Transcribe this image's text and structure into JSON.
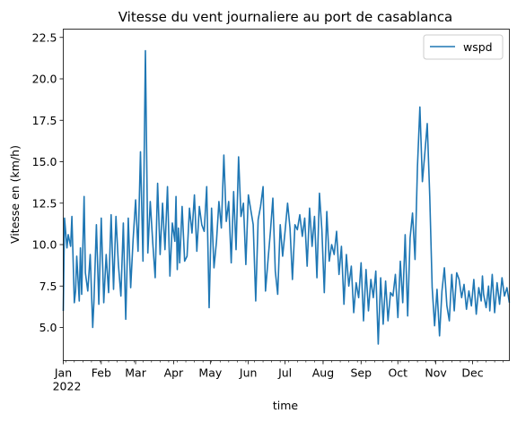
{
  "chart_data": {
    "type": "line",
    "title": "Vitesse du vent journaliere au port de casablanca",
    "xlabel": "time",
    "ylabel": "Vitesse en (km/h)",
    "ylim": [
      3.0,
      23.0
    ],
    "xlim": [
      "2022-01-01",
      "2022-12-31"
    ],
    "y_ticks": [
      5.0,
      7.5,
      10.0,
      12.5,
      15.0,
      17.5,
      20.0,
      22.5
    ],
    "y_tick_labels": [
      "5.0",
      "7.5",
      "10.0",
      "12.5",
      "15.0",
      "17.5",
      "20.0",
      "22.5"
    ],
    "x_ticks": [
      {
        "date": "2022-01-01",
        "label": "Jan",
        "sublabel": "2022"
      },
      {
        "date": "2022-02-01",
        "label": "Feb"
      },
      {
        "date": "2022-03-01",
        "label": "Mar"
      },
      {
        "date": "2022-04-01",
        "label": "Apr"
      },
      {
        "date": "2022-05-01",
        "label": "May"
      },
      {
        "date": "2022-06-01",
        "label": "Jun"
      },
      {
        "date": "2022-07-01",
        "label": "Jul"
      },
      {
        "date": "2022-08-01",
        "label": "Aug"
      },
      {
        "date": "2022-09-01",
        "label": "Sep"
      },
      {
        "date": "2022-10-01",
        "label": "Oct"
      },
      {
        "date": "2022-11-01",
        "label": "Nov"
      },
      {
        "date": "2022-12-01",
        "label": "Dec"
      }
    ],
    "legend": {
      "position": "top-right"
    },
    "grid": false,
    "series": [
      {
        "name": "wspd",
        "color": "#1f77b4",
        "x": [
          "2022-01-01",
          "2022-01-02",
          "2022-01-04",
          "2022-01-05",
          "2022-01-07",
          "2022-01-08",
          "2022-01-10",
          "2022-01-11",
          "2022-01-12",
          "2022-01-14",
          "2022-01-15",
          "2022-01-16",
          "2022-01-18",
          "2022-01-19",
          "2022-01-21",
          "2022-01-23",
          "2022-01-25",
          "2022-01-26",
          "2022-01-28",
          "2022-01-30",
          "2022-02-01",
          "2022-02-03",
          "2022-02-05",
          "2022-02-07",
          "2022-02-09",
          "2022-02-11",
          "2022-02-13",
          "2022-02-15",
          "2022-02-17",
          "2022-02-19",
          "2022-02-21",
          "2022-02-23",
          "2022-02-25",
          "2022-02-27",
          "2022-03-01",
          "2022-03-03",
          "2022-03-05",
          "2022-03-07",
          "2022-03-09",
          "2022-03-11",
          "2022-03-13",
          "2022-03-15",
          "2022-03-17",
          "2022-03-19",
          "2022-03-21",
          "2022-03-23",
          "2022-03-25",
          "2022-03-27",
          "2022-03-29",
          "2022-03-31",
          "2022-04-02",
          "2022-04-03",
          "2022-04-04",
          "2022-04-05",
          "2022-04-06",
          "2022-04-08",
          "2022-04-10",
          "2022-04-12",
          "2022-04-14",
          "2022-04-16",
          "2022-04-18",
          "2022-04-20",
          "2022-04-22",
          "2022-04-24",
          "2022-04-26",
          "2022-04-28",
          "2022-04-30",
          "2022-05-02",
          "2022-05-04",
          "2022-05-06",
          "2022-05-08",
          "2022-05-10",
          "2022-05-12",
          "2022-05-14",
          "2022-05-16",
          "2022-05-18",
          "2022-05-20",
          "2022-05-22",
          "2022-05-24",
          "2022-05-26",
          "2022-05-28",
          "2022-05-30",
          "2022-06-01",
          "2022-06-03",
          "2022-06-05",
          "2022-06-07",
          "2022-06-09",
          "2022-06-11",
          "2022-06-13",
          "2022-06-15",
          "2022-06-17",
          "2022-06-19",
          "2022-06-21",
          "2022-06-23",
          "2022-06-25",
          "2022-06-27",
          "2022-06-29",
          "2022-07-01",
          "2022-07-03",
          "2022-07-05",
          "2022-07-07",
          "2022-07-09",
          "2022-07-11",
          "2022-07-13",
          "2022-07-15",
          "2022-07-17",
          "2022-07-19",
          "2022-07-21",
          "2022-07-23",
          "2022-07-25",
          "2022-07-27",
          "2022-07-29",
          "2022-07-31",
          "2022-08-02",
          "2022-08-04",
          "2022-08-06",
          "2022-08-08",
          "2022-08-10",
          "2022-08-12",
          "2022-08-14",
          "2022-08-16",
          "2022-08-18",
          "2022-08-20",
          "2022-08-22",
          "2022-08-24",
          "2022-08-26",
          "2022-08-28",
          "2022-08-30",
          "2022-09-01",
          "2022-09-03",
          "2022-09-05",
          "2022-09-07",
          "2022-09-09",
          "2022-09-11",
          "2022-09-13",
          "2022-09-15",
          "2022-09-17",
          "2022-09-19",
          "2022-09-21",
          "2022-09-23",
          "2022-09-25",
          "2022-09-27",
          "2022-09-29",
          "2022-10-01",
          "2022-10-03",
          "2022-10-05",
          "2022-10-07",
          "2022-10-09",
          "2022-10-11",
          "2022-10-13",
          "2022-10-15",
          "2022-10-17",
          "2022-10-19",
          "2022-10-21",
          "2022-10-23",
          "2022-10-25",
          "2022-10-27",
          "2022-10-29",
          "2022-10-31",
          "2022-11-02",
          "2022-11-04",
          "2022-11-06",
          "2022-11-08",
          "2022-11-10",
          "2022-11-12",
          "2022-11-14",
          "2022-11-16",
          "2022-11-18",
          "2022-11-20",
          "2022-11-22",
          "2022-11-24",
          "2022-11-26",
          "2022-11-28",
          "2022-11-30",
          "2022-12-02",
          "2022-12-04",
          "2022-12-06",
          "2022-12-08",
          "2022-12-09",
          "2022-12-10",
          "2022-12-12",
          "2022-12-14",
          "2022-12-15",
          "2022-12-17",
          "2022-12-19",
          "2022-12-21",
          "2022-12-23",
          "2022-12-25",
          "2022-12-27",
          "2022-12-29",
          "2022-12-31"
        ],
        "values": [
          6.0,
          11.6,
          9.8,
          10.6,
          9.9,
          11.7,
          6.5,
          7.2,
          9.3,
          6.6,
          9.8,
          7.0,
          12.9,
          8.3,
          7.2,
          9.4,
          5.0,
          6.5,
          11.2,
          6.4,
          11.6,
          6.5,
          9.4,
          7.1,
          11.8,
          7.3,
          11.7,
          8.8,
          6.9,
          11.3,
          5.5,
          11.6,
          7.4,
          10.3,
          12.7,
          9.6,
          15.6,
          9.0,
          21.7,
          9.5,
          12.6,
          10.1,
          8.0,
          13.7,
          9.4,
          12.5,
          9.7,
          13.5,
          8.1,
          11.3,
          10.2,
          12.9,
          8.5,
          11.0,
          8.9,
          12.3,
          9.0,
          9.3,
          12.2,
          10.7,
          13.0,
          9.6,
          12.3,
          11.2,
          10.8,
          13.5,
          6.2,
          12.2,
          8.6,
          10.2,
          12.6,
          11.0,
          15.4,
          11.4,
          12.6,
          8.9,
          13.2,
          9.7,
          15.3,
          11.7,
          12.5,
          8.8,
          13.0,
          12.1,
          11.2,
          6.6,
          11.5,
          12.3,
          13.5,
          7.2,
          9.0,
          10.8,
          12.8,
          8.4,
          7.0,
          11.2,
          9.3,
          10.8,
          12.5,
          11.0,
          7.9,
          11.2,
          10.9,
          11.8,
          10.5,
          11.6,
          8.7,
          12.2,
          9.9,
          11.7,
          8.0,
          13.1,
          10.9,
          7.1,
          12.0,
          9.0,
          10.0,
          9.4,
          10.8,
          8.2,
          9.9,
          6.4,
          9.4,
          7.5,
          8.7,
          5.9,
          7.7,
          6.8,
          8.9,
          5.4,
          8.5,
          6.0,
          7.9,
          6.8,
          8.4,
          4.0,
          8.0,
          5.2,
          7.8,
          5.4,
          7.1,
          6.9,
          8.2,
          5.6,
          9.0,
          6.5,
          10.6,
          5.7,
          10.4,
          11.9,
          9.1,
          14.7,
          18.3,
          13.8,
          15.5,
          17.3,
          12.9,
          7.4,
          5.1,
          7.3,
          4.5,
          7.2,
          8.6,
          6.3,
          5.4,
          8.2,
          6.0,
          8.3,
          7.9,
          6.8,
          7.6,
          6.1,
          7.2,
          6.3,
          7.9,
          5.8,
          7.4,
          6.6,
          8.1,
          7.0,
          6.2,
          7.5,
          6.0,
          8.2,
          5.9,
          7.7,
          6.4,
          8.0,
          6.9,
          7.4,
          6.5
        ]
      }
    ]
  }
}
